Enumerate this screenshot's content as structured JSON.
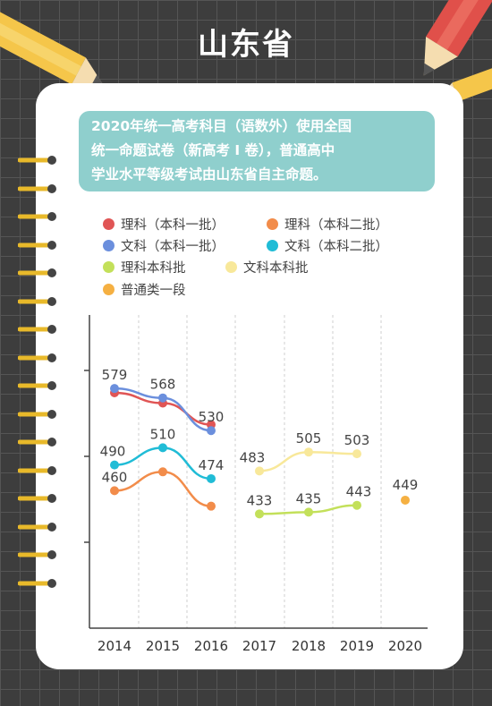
{
  "title": "山东省",
  "notice": [
    "2020年统一高考科目（语数外）使用全国",
    "统一命题试卷（新高考 I 卷），普通高中",
    "学业水平等级考试由山东省自主命题。"
  ],
  "colors": {
    "science_tier1": "#e05555",
    "science_tier2": "#f28c4a",
    "arts_tier1": "#6b8fdd",
    "arts_tier2": "#20bcd6",
    "science_undergrad": "#c3e05a",
    "arts_undergrad": "#f8e89a",
    "general_tier1": "#f5b042",
    "notice_bg": "#8fcfcd"
  },
  "chart_data": {
    "type": "line",
    "categories": [
      "2014",
      "2015",
      "2016",
      "2017",
      "2018",
      "2019",
      "2020"
    ],
    "series": [
      {
        "name": "理科（本科一批）",
        "color": "#e05555",
        "values": [
          574,
          562,
          537,
          null,
          null,
          null,
          null
        ],
        "labels": [
          null,
          null,
          null,
          null,
          null,
          null,
          null
        ]
      },
      {
        "name": "理科（本科二批）",
        "color": "#f28c4a",
        "values": [
          460,
          482,
          442,
          null,
          null,
          null,
          null
        ],
        "labels": [
          "460",
          null,
          null,
          null,
          null,
          null,
          null
        ]
      },
      {
        "name": "文科（本科一批）",
        "color": "#6b8fdd",
        "values": [
          579,
          568,
          530,
          null,
          null,
          null,
          null
        ],
        "labels": [
          "579",
          "568",
          "530",
          null,
          null,
          null,
          null
        ]
      },
      {
        "name": "文科（本科二批）",
        "color": "#20bcd6",
        "values": [
          490,
          510,
          474,
          null,
          null,
          null,
          null
        ],
        "labels": [
          "490",
          "510",
          "474",
          null,
          null,
          null,
          null
        ]
      },
      {
        "name": "理科本科批",
        "color": "#c3e05a",
        "values": [
          null,
          null,
          null,
          433,
          435,
          443,
          null
        ],
        "labels": [
          null,
          null,
          null,
          "433",
          "435",
          "443",
          null
        ]
      },
      {
        "name": "文科本科批",
        "color": "#f8e89a",
        "values": [
          null,
          null,
          null,
          483,
          505,
          503,
          null
        ],
        "labels": [
          null,
          null,
          null,
          "483",
          "505",
          "503",
          null
        ]
      },
      {
        "name": "普通类一段",
        "color": "#f5b042",
        "values": [
          null,
          null,
          null,
          null,
          null,
          null,
          449
        ],
        "labels": [
          null,
          null,
          null,
          null,
          null,
          null,
          "449"
        ]
      }
    ],
    "yticks": [
      400,
      500,
      600
    ],
    "ylim": [
      300,
      650
    ],
    "grid": "vertical-dashed"
  }
}
